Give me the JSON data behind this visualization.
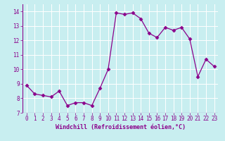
{
  "x": [
    0,
    1,
    2,
    3,
    4,
    5,
    6,
    7,
    8,
    9,
    10,
    11,
    12,
    13,
    14,
    15,
    16,
    17,
    18,
    19,
    20,
    21,
    22,
    23
  ],
  "y": [
    8.9,
    8.3,
    8.2,
    8.1,
    8.5,
    7.5,
    7.7,
    7.7,
    7.5,
    8.7,
    10.0,
    13.9,
    13.8,
    13.9,
    13.5,
    12.5,
    12.2,
    12.9,
    12.7,
    12.9,
    12.1,
    9.5,
    10.7,
    10.2
  ],
  "line_color": "#8B008B",
  "marker": "D",
  "marker_size": 2.5,
  "bg_color": "#c8eef0",
  "grid_color": "#ffffff",
  "xlabel": "Windchill (Refroidissement éolien,°C)",
  "xlabel_color": "#8B008B",
  "tick_color": "#8B008B",
  "ylim": [
    7,
    14.5
  ],
  "xlim": [
    -0.5,
    23.5
  ],
  "yticks": [
    7,
    8,
    9,
    10,
    11,
    12,
    13,
    14
  ],
  "xticks": [
    0,
    1,
    2,
    3,
    4,
    5,
    6,
    7,
    8,
    9,
    10,
    11,
    12,
    13,
    14,
    15,
    16,
    17,
    18,
    19,
    20,
    21,
    22,
    23
  ],
  "tick_fontsize": 5.5,
  "xlabel_fontsize": 6.0
}
